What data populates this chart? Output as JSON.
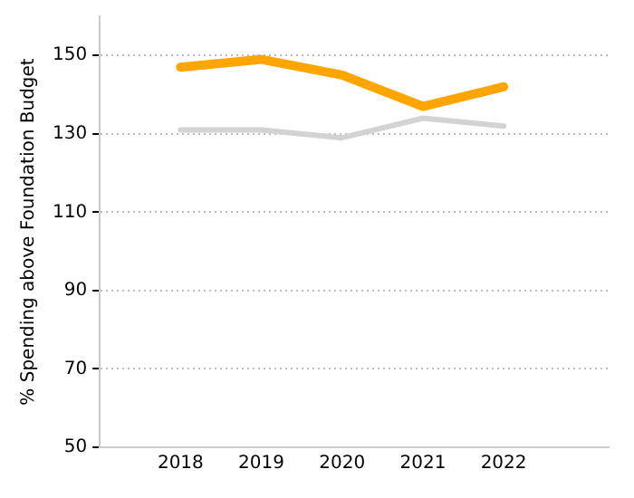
{
  "chart_data": {
    "type": "line",
    "ylabel": "% Spending above Foundation Budget",
    "x": [
      2018,
      2019,
      2020,
      2021,
      2022
    ],
    "xlim": [
      2017,
      2023.3
    ],
    "xticks": [
      2018,
      2019,
      2020,
      2021,
      2022
    ],
    "ylim": [
      50,
      160
    ],
    "yticks": [
      50,
      70,
      90,
      110,
      130,
      150
    ],
    "grid": "y",
    "legend": false,
    "marker": "none",
    "line_style": "solid",
    "series": [
      {
        "color": "#d3d3d3",
        "values": [
          131,
          131,
          129,
          134,
          132
        ]
      },
      {
        "color": "#ffa500",
        "values": [
          147,
          149,
          145,
          137,
          142
        ]
      }
    ]
  }
}
